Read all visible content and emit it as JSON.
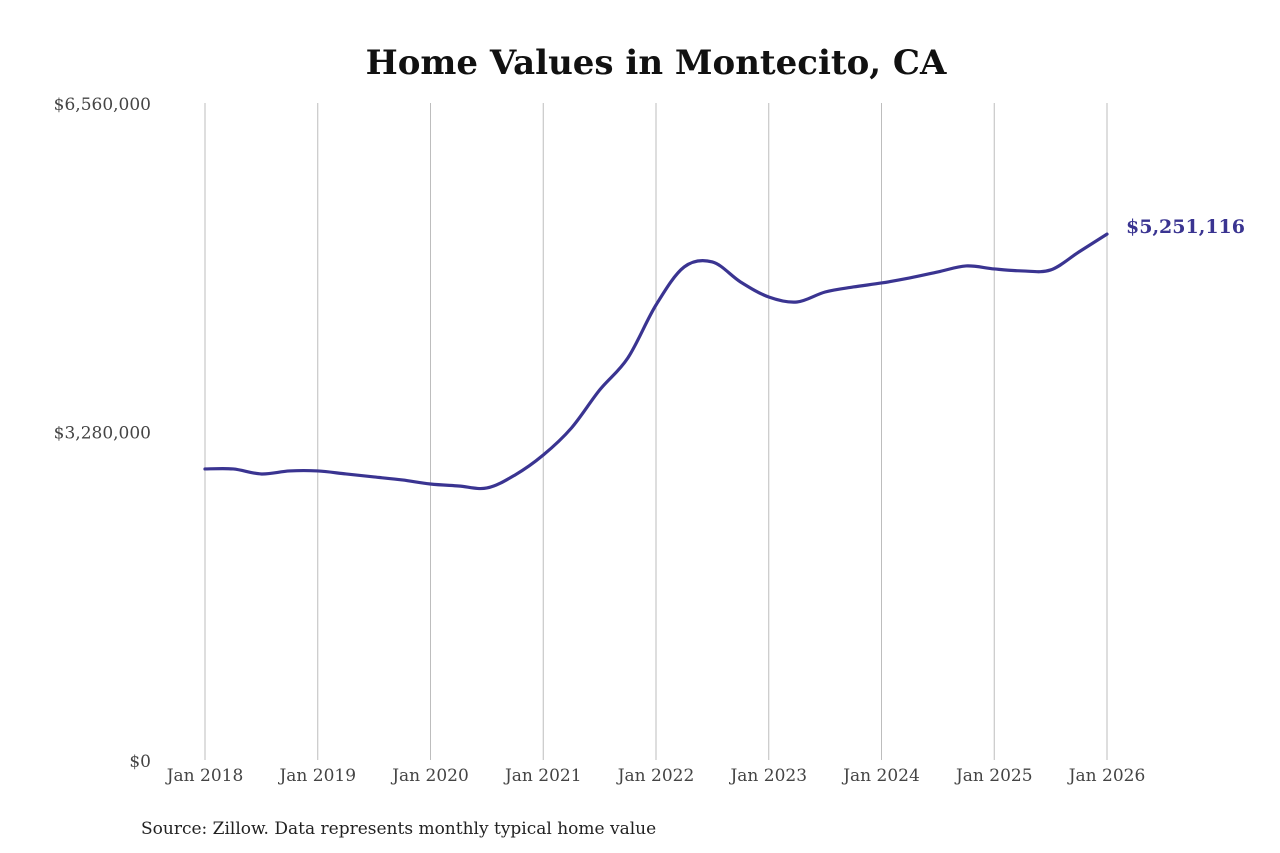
{
  "chart_data": {
    "type": "line",
    "title": "Home Values in Montecito, CA",
    "source": "Source: Zillow. Data represents monthly typical home value",
    "xlabel": "",
    "ylabel": "",
    "ylim": [
      0,
      6560000
    ],
    "y_ticks": [
      {
        "value": 0,
        "label": "$0"
      },
      {
        "value": 3280000,
        "label": "$3,280,000"
      },
      {
        "value": 6560000,
        "label": "$6,560,000"
      }
    ],
    "x_ticks": [
      {
        "value": "2018-01",
        "label": "Jan 2018"
      },
      {
        "value": "2019-01",
        "label": "Jan 2019"
      },
      {
        "value": "2020-01",
        "label": "Jan 2020"
      },
      {
        "value": "2021-01",
        "label": "Jan 2021"
      },
      {
        "value": "2022-01",
        "label": "Jan 2022"
      },
      {
        "value": "2023-01",
        "label": "Jan 2023"
      },
      {
        "value": "2024-01",
        "label": "Jan 2024"
      },
      {
        "value": "2025-01",
        "label": "Jan 2025"
      },
      {
        "value": "2026-01",
        "label": "Jan 2026"
      }
    ],
    "grid": {
      "vertical": true,
      "horizontal": false
    },
    "line_color": "#3a3491",
    "last_value_label": "$5,251,116",
    "series": [
      {
        "x": [
          "2018-01",
          "2018-04",
          "2018-07",
          "2018-10",
          "2019-01",
          "2019-04",
          "2019-07",
          "2019-10",
          "2020-01",
          "2020-04",
          "2020-07",
          "2020-10",
          "2021-01",
          "2021-04",
          "2021-07",
          "2021-10",
          "2022-01",
          "2022-04",
          "2022-07",
          "2022-10",
          "2023-01",
          "2023-04",
          "2023-07",
          "2023-10",
          "2024-01",
          "2024-04",
          "2024-07",
          "2024-10",
          "2025-01",
          "2025-04",
          "2025-07",
          "2025-10",
          "2026-01"
        ],
        "values": [
          2906000,
          2906000,
          2856000,
          2886000,
          2886000,
          2856000,
          2826000,
          2796000,
          2756000,
          2736000,
          2716000,
          2846000,
          3045000,
          3315000,
          3694000,
          4014000,
          4543000,
          4923000,
          4973000,
          4773000,
          4623000,
          4573000,
          4673000,
          4723000,
          4763000,
          4813000,
          4873000,
          4933000,
          4903000,
          4883000,
          4893000,
          5072000,
          5251116
        ]
      }
    ]
  }
}
